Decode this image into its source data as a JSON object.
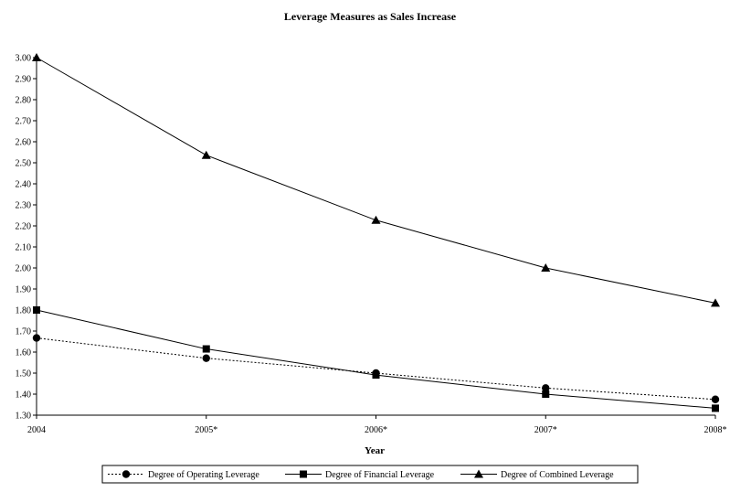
{
  "chart_data": {
    "type": "line",
    "title": "Leverage Measures as Sales Increase",
    "xlabel": "Year",
    "ylabel": "",
    "categories": [
      "2004",
      "2005*",
      "2006*",
      "2007*",
      "2008*"
    ],
    "ylim": [
      1.3,
      3.0
    ],
    "ytick_step": 0.1,
    "yticks": [
      "1.30",
      "1.40",
      "1.50",
      "1.60",
      "1.70",
      "1.80",
      "1.90",
      "2.00",
      "2.10",
      "2.20",
      "2.30",
      "2.40",
      "2.50",
      "2.60",
      "2.70",
      "2.80",
      "2.90",
      "3.00"
    ],
    "grid": false,
    "legend_position": "bottom",
    "series": [
      {
        "name": "Degree of Operating Leverage",
        "values": [
          1.667,
          1.571,
          1.5,
          1.429,
          1.375
        ],
        "marker": "circle",
        "line": "dotted",
        "color": "#000000"
      },
      {
        "name": "Degree of Financial Leverage",
        "values": [
          1.8,
          1.615,
          1.491,
          1.4,
          1.333
        ],
        "marker": "square",
        "line": "solid",
        "color": "#000000"
      },
      {
        "name": "Degree of Combined Leverage",
        "values": [
          3.0,
          2.536,
          2.227,
          2.0,
          1.833
        ],
        "marker": "triangle",
        "line": "solid",
        "color": "#000000"
      }
    ]
  }
}
